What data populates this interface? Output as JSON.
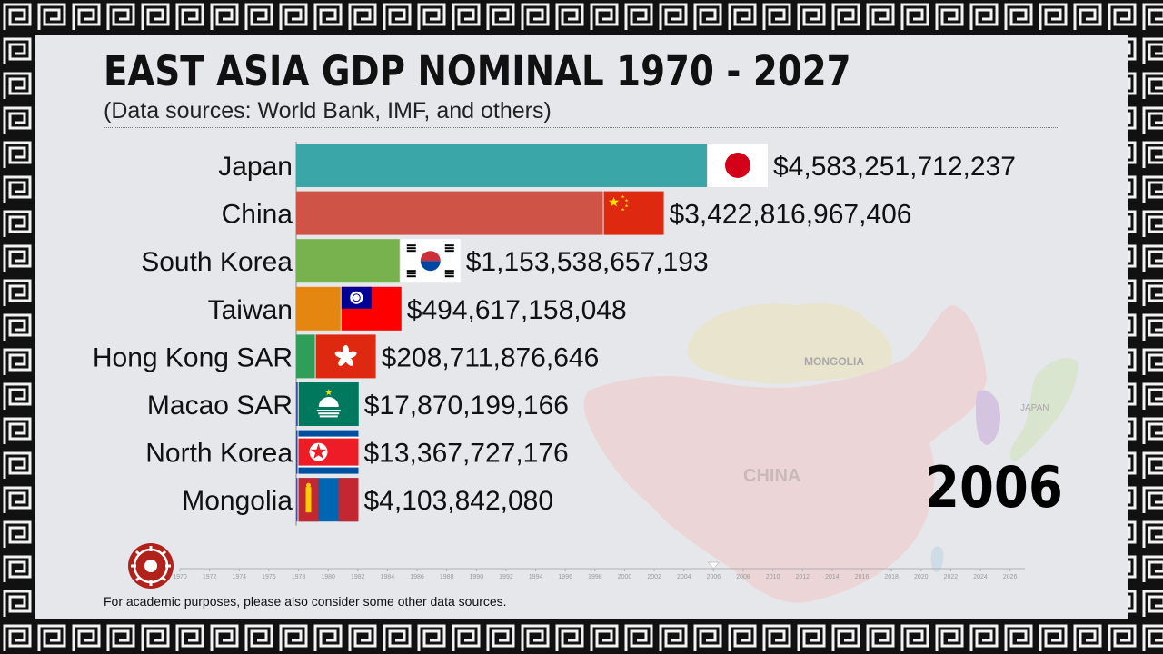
{
  "title": "EAST ASIA GDP NOMINAL 1970 - 2027",
  "subtitle": "(Data sources: World Bank, IMF, and others)",
  "year": "2006",
  "footnote": "For academic purposes, please also consider some other data sources.",
  "map_labels": {
    "mongolia": "MONGOLIA",
    "china": "CHINA",
    "japan": "JAPAN"
  },
  "colors": {
    "background": "#e5e7ea",
    "frame": "#111111"
  },
  "chart_data": {
    "type": "bar",
    "orientation": "horizontal",
    "title": "EAST ASIA GDP NOMINAL 1970 - 2027",
    "categories": [
      "Japan",
      "China",
      "South Korea",
      "Taiwan",
      "Hong Kong SAR",
      "Macao SAR",
      "North Korea",
      "Mongolia"
    ],
    "values": [
      4583251712237,
      3422816967406,
      1153538657193,
      494617158048,
      208711876646,
      17870199166,
      13367727176,
      4103842080
    ],
    "value_labels": [
      "$4,583,251,712,237",
      "$3,422,816,967,406",
      "$1,153,538,657,193",
      "$494,617,158,048",
      "$208,711,876,646",
      "$17,870,199,166",
      "$13,367,727,176",
      "$4,103,842,080"
    ],
    "bar_colors": [
      "#3aa6a8",
      "#cf5447",
      "#77b24f",
      "#e4860f",
      "#2f9e58",
      "#3c4fa0",
      "#2c4c92",
      "#4d4d9a"
    ],
    "flags": [
      "japan-flag",
      "china-flag",
      "south-korea-flag",
      "taiwan-flag",
      "hong-kong-flag",
      "macao-flag",
      "north-korea-flag",
      "mongolia-flag"
    ],
    "timeline": {
      "ticks": [
        "1970",
        "1972",
        "1974",
        "1976",
        "1978",
        "1980",
        "1982",
        "1984",
        "1986",
        "1988",
        "1990",
        "1992",
        "1994",
        "1996",
        "1998",
        "2000",
        "2002",
        "2004",
        "2006",
        "2008",
        "2010",
        "2012",
        "2014",
        "2016",
        "2018",
        "2020",
        "2022",
        "2024",
        "2026"
      ],
      "range": [
        1970,
        2027
      ],
      "current": 2006
    }
  }
}
